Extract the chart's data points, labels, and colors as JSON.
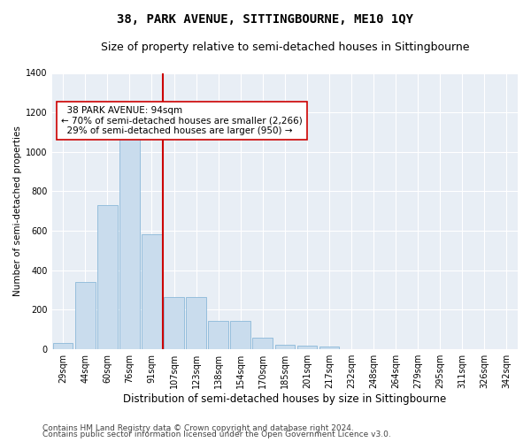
{
  "title": "38, PARK AVENUE, SITTINGBOURNE, ME10 1QY",
  "subtitle": "Size of property relative to semi-detached houses in Sittingbourne",
  "xlabel": "Distribution of semi-detached houses by size in Sittingbourne",
  "ylabel": "Number of semi-detached properties",
  "categories": [
    "29sqm",
    "44sqm",
    "60sqm",
    "76sqm",
    "91sqm",
    "107sqm",
    "123sqm",
    "138sqm",
    "154sqm",
    "170sqm",
    "185sqm",
    "201sqm",
    "217sqm",
    "232sqm",
    "248sqm",
    "264sqm",
    "279sqm",
    "295sqm",
    "311sqm",
    "326sqm",
    "342sqm"
  ],
  "values": [
    30,
    340,
    730,
    1070,
    580,
    265,
    265,
    140,
    140,
    55,
    20,
    15,
    10,
    0,
    0,
    0,
    0,
    0,
    0,
    0,
    0
  ],
  "bar_color": "#c9dced",
  "bar_edge_color": "#7bafd4",
  "marker_label": "38 PARK AVENUE: 94sqm",
  "smaller_pct": "70%",
  "smaller_count": "2,266",
  "larger_pct": "29%",
  "larger_count": "950",
  "marker_line_color": "#cc0000",
  "annotation_box_color": "#ffffff",
  "annotation_box_edge": "#cc0000",
  "ylim": [
    0,
    1400
  ],
  "yticks": [
    0,
    200,
    400,
    600,
    800,
    1000,
    1200,
    1400
  ],
  "footer1": "Contains HM Land Registry data © Crown copyright and database right 2024.",
  "footer2": "Contains public sector information licensed under the Open Government Licence v3.0.",
  "bg_color": "#e8eef5",
  "title_fontsize": 10,
  "subtitle_fontsize": 9,
  "xlabel_fontsize": 8.5,
  "ylabel_fontsize": 7.5,
  "tick_fontsize": 7,
  "annot_fontsize": 7.5,
  "footer_fontsize": 6.5
}
